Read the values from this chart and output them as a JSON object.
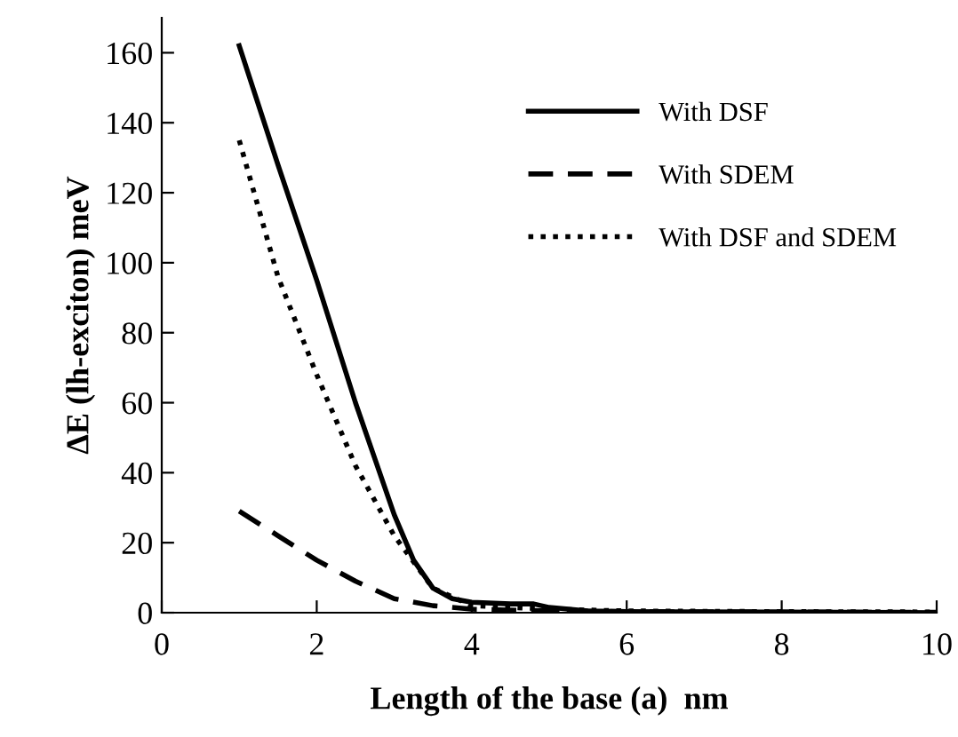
{
  "chart_data": {
    "type": "line",
    "xlabel": "Length of the base (a)  nm",
    "ylabel": "ΔE (lh-exciton) meV",
    "xlim": [
      0,
      10
    ],
    "xticks": [
      0,
      2,
      4,
      6,
      8,
      10
    ],
    "ylim": [
      0,
      170
    ],
    "yticks": [
      0,
      20,
      40,
      60,
      80,
      100,
      120,
      140,
      160
    ],
    "grid": false,
    "legend": "top right",
    "series": [
      {
        "name": "With DSF",
        "color": "#000000",
        "line_style": "solid",
        "x": [
          1,
          1.5,
          2,
          2.5,
          3,
          3.25,
          3.5,
          3.75,
          4,
          4.5,
          4.8,
          5,
          5.5,
          6,
          8,
          10
        ],
        "values": [
          162,
          128,
          95,
          60,
          28,
          15,
          7,
          4,
          3,
          2.5,
          2.5,
          1.5,
          0.5,
          0.3,
          0.2,
          0
        ]
      },
      {
        "name": "With SDEM",
        "color": "#000000",
        "line_style": "dashed",
        "x": [
          1,
          1.5,
          2,
          2.5,
          3,
          3.5,
          4,
          5,
          6,
          8,
          10
        ],
        "values": [
          29,
          22,
          15,
          9,
          4,
          2,
          1,
          0.5,
          0.3,
          0.2,
          0.1
        ]
      },
      {
        "name": "With DSF and SDEM",
        "color": "#000000",
        "line_style": "dotted",
        "x": [
          1,
          1.5,
          2,
          2.5,
          3,
          3.5,
          4,
          4.5,
          5,
          6,
          8,
          10
        ],
        "values": [
          135,
          96,
          68,
          42,
          22,
          7,
          2,
          1.5,
          1,
          0.5,
          0.3,
          0.2
        ]
      }
    ]
  }
}
